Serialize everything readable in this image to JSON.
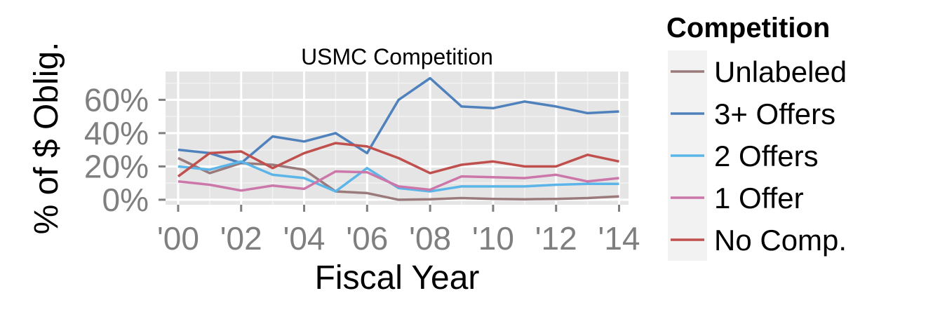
{
  "chart_data": {
    "type": "line",
    "title": "USMC Competition",
    "xlabel": "Fiscal Year",
    "ylabel": "% of $ Oblig.",
    "x": [
      2000,
      2001,
      2002,
      2003,
      2004,
      2005,
      2006,
      2007,
      2008,
      2009,
      2010,
      2011,
      2012,
      2013,
      2014
    ],
    "x_ticks": [
      2000,
      2002,
      2004,
      2006,
      2008,
      2010,
      2012,
      2014
    ],
    "x_tick_labels": [
      "'00",
      "'02",
      "'04",
      "'06",
      "'08",
      "'10",
      "'12",
      "'14"
    ],
    "xlim": [
      1999.6,
      2014.3
    ],
    "y_ticks": [
      0,
      20,
      40,
      60
    ],
    "y_tick_labels": [
      "0%",
      "20%",
      "40%",
      "60%"
    ],
    "ylim": [
      -3,
      77
    ],
    "grid": true,
    "legend_title": "Competition",
    "legend_position": "right",
    "series": [
      {
        "name": "Unlabeled",
        "color": "#9A7A7A",
        "values": [
          25,
          16,
          22,
          21,
          18,
          5,
          4,
          0,
          0.3,
          1,
          0.5,
          0.3,
          0.5,
          1,
          2
        ]
      },
      {
        "name": "3+ Offers",
        "color": "#4F81BD",
        "values": [
          30,
          28,
          22,
          38,
          35,
          40,
          28,
          60,
          73,
          56,
          55,
          59,
          56,
          52,
          53
        ]
      },
      {
        "name": "2 Offers",
        "color": "#5BB5E8",
        "values": [
          20,
          18,
          23,
          15,
          13,
          5,
          19,
          7,
          5,
          8,
          8,
          8,
          9,
          9.5,
          9.5
        ]
      },
      {
        "name": "1 Offer",
        "color": "#CC77AA",
        "values": [
          11,
          9,
          5.5,
          8.5,
          6.5,
          17,
          16.5,
          8,
          6,
          14,
          13.5,
          13,
          15,
          11,
          13
        ]
      },
      {
        "name": "No Comp.",
        "color": "#C0504D",
        "values": [
          14,
          28,
          29,
          19,
          28,
          34,
          32,
          25,
          16,
          21,
          23,
          20,
          20,
          27,
          23
        ]
      }
    ]
  }
}
